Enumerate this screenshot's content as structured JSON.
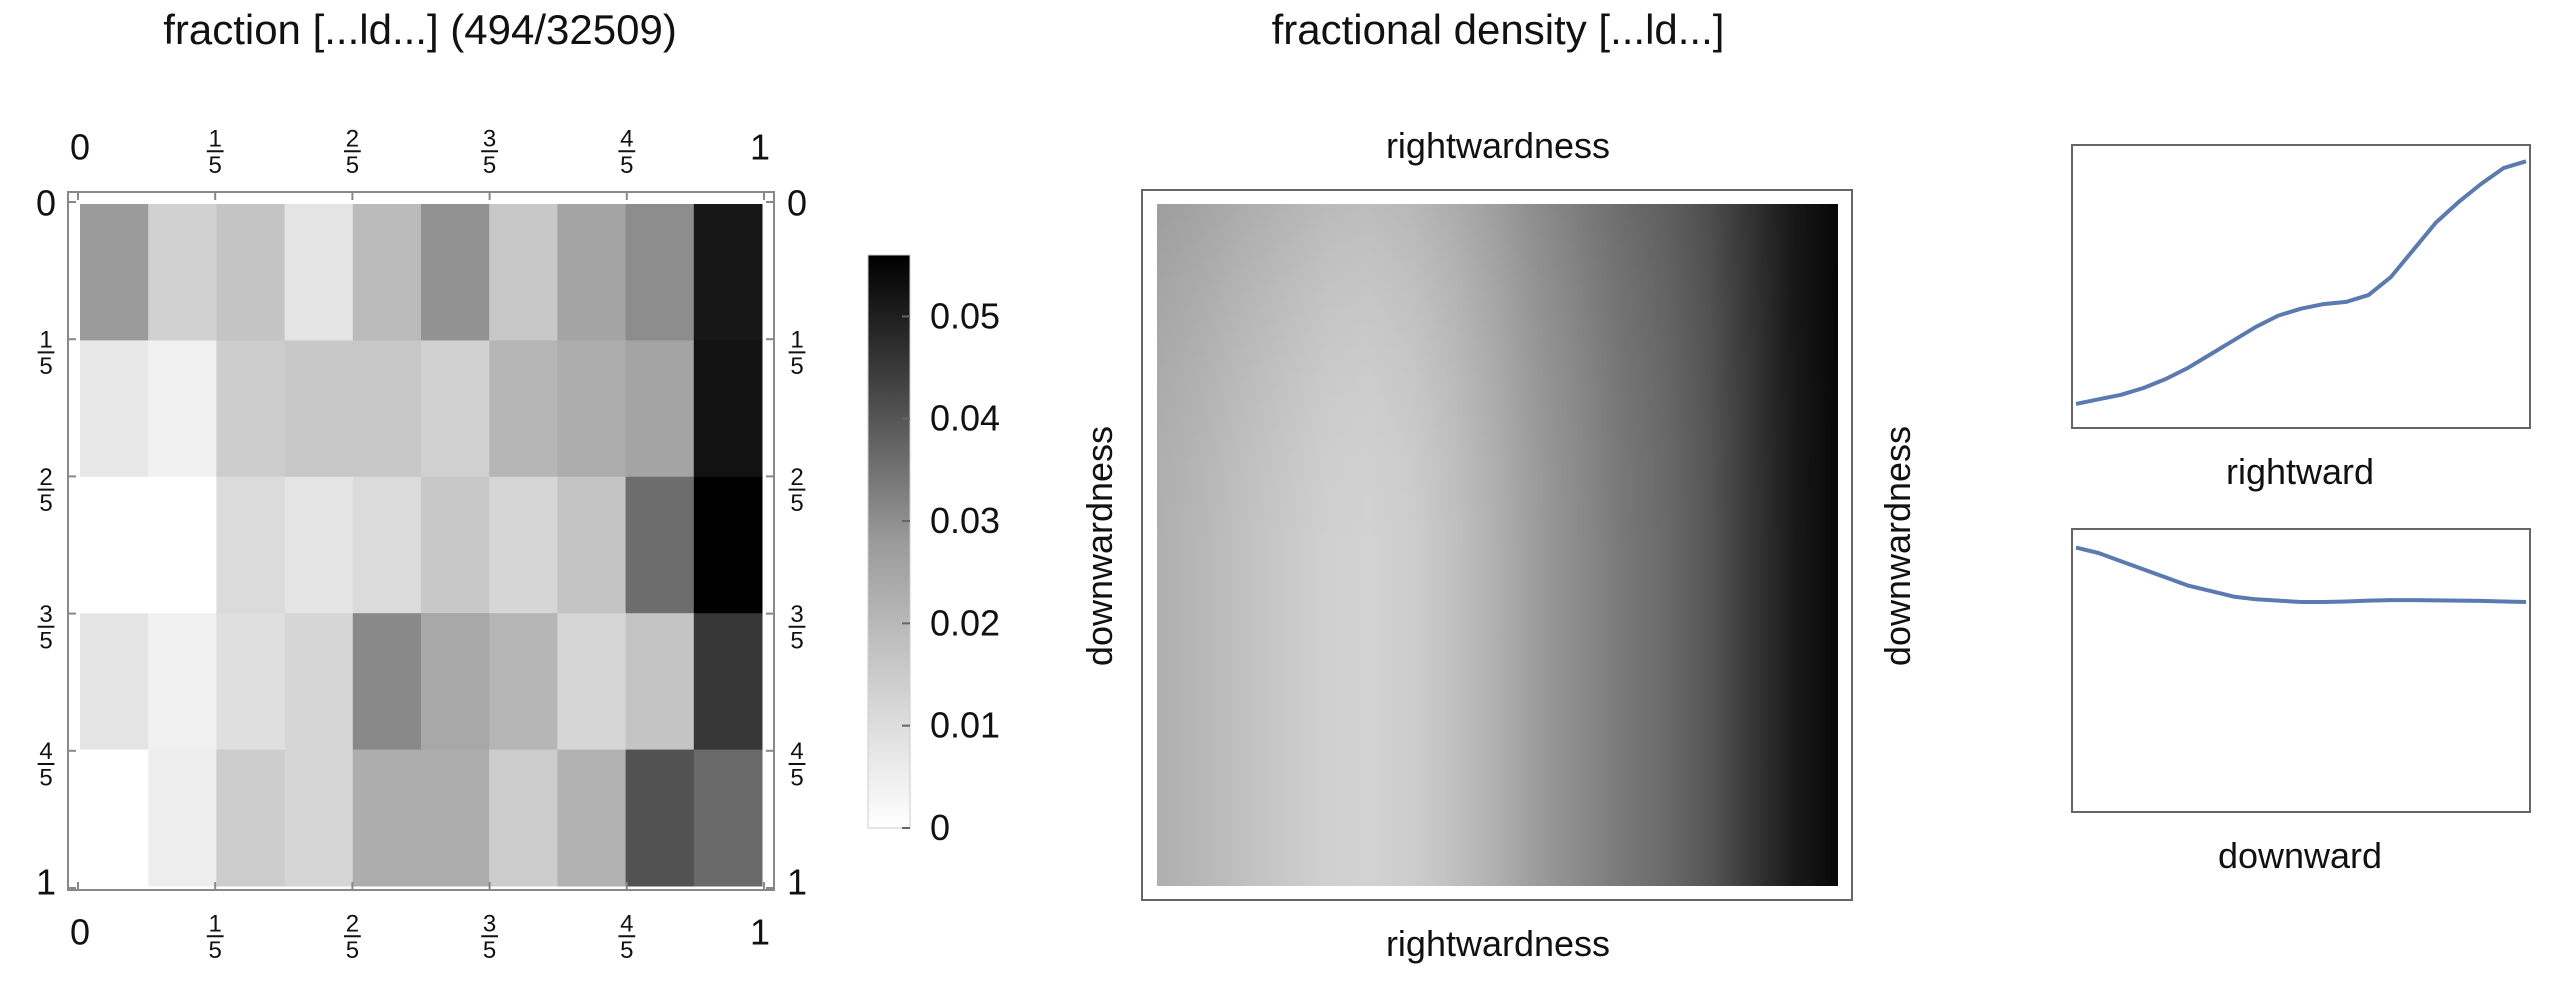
{
  "chart_data": [
    {
      "type": "heatmap",
      "title": "fraction [...ld...]  (494/32509)",
      "rows": 5,
      "cols": 10,
      "top_ticks": [
        "0",
        "1/5",
        "2/5",
        "3/5",
        "4/5",
        "1"
      ],
      "bottom_ticks": [
        "0",
        "1/5",
        "2/5",
        "3/5",
        "4/5",
        "1"
      ],
      "left_ticks": [
        "0",
        "1/5",
        "2/5",
        "3/5",
        "4/5",
        "1"
      ],
      "right_ticks": [
        "0",
        "1/5",
        "2/5",
        "3/5",
        "4/5",
        "1"
      ],
      "values": [
        [
          0.022,
          0.01,
          0.013,
          0.006,
          0.015,
          0.024,
          0.012,
          0.02,
          0.025,
          0.051
        ],
        [
          0.005,
          0.003,
          0.011,
          0.012,
          0.012,
          0.01,
          0.016,
          0.018,
          0.02,
          0.052
        ],
        [
          0.0,
          0.0,
          0.008,
          0.006,
          0.008,
          0.012,
          0.009,
          0.013,
          0.032,
          0.056
        ],
        [
          0.006,
          0.003,
          0.007,
          0.009,
          0.026,
          0.019,
          0.016,
          0.009,
          0.013,
          0.044
        ],
        [
          0.0,
          0.004,
          0.011,
          0.009,
          0.018,
          0.018,
          0.011,
          0.017,
          0.038,
          0.033
        ]
      ],
      "colorbar": {
        "range": [
          0,
          0.056
        ],
        "ticks": [
          "0",
          "0.01",
          "0.02",
          "0.03",
          "0.04",
          "0.05"
        ],
        "tick_values": [
          0,
          0.01,
          0.02,
          0.03,
          0.04,
          0.05
        ]
      }
    },
    {
      "type": "heatmap",
      "title": "fractional density [...ld...]",
      "xlabel_top": "rightwardness",
      "xlabel_bottom": "rightwardness",
      "ylabel_left": "downwardness",
      "ylabel_right": "downwardness",
      "column_profile": [
        0.3,
        0.27,
        0.23,
        0.2,
        0.17,
        0.16,
        0.18,
        0.23,
        0.3,
        0.38,
        0.45,
        0.52,
        0.58,
        0.66,
        0.78,
        0.9,
        0.97
      ],
      "row_profile": [
        0.12,
        0.08,
        0.05,
        0.03,
        0.02,
        0.02,
        0.02,
        0.02,
        0.02
      ]
    },
    {
      "type": "line",
      "xlabel": "rightward",
      "x": [
        0,
        0.05,
        0.1,
        0.15,
        0.2,
        0.25,
        0.3,
        0.35,
        0.4,
        0.45,
        0.5,
        0.55,
        0.6,
        0.65,
        0.7,
        0.75,
        0.8,
        0.85,
        0.9,
        0.95,
        1.0
      ],
      "y": [
        0.08,
        0.1,
        0.12,
        0.15,
        0.19,
        0.24,
        0.3,
        0.36,
        0.42,
        0.47,
        0.5,
        0.52,
        0.53,
        0.56,
        0.64,
        0.76,
        0.88,
        0.97,
        1.05,
        1.12,
        1.15
      ],
      "ylim": [
        0,
        1.2
      ],
      "color": "#5a7ab0"
    },
    {
      "type": "line",
      "xlabel": "downward",
      "x": [
        0,
        0.05,
        0.1,
        0.15,
        0.2,
        0.25,
        0.3,
        0.35,
        0.4,
        0.45,
        0.5,
        0.55,
        0.6,
        0.65,
        0.7,
        0.75,
        0.8,
        0.85,
        0.9,
        0.95,
        1.0
      ],
      "y": [
        0.95,
        0.93,
        0.9,
        0.87,
        0.84,
        0.81,
        0.79,
        0.77,
        0.76,
        0.755,
        0.75,
        0.75,
        0.752,
        0.755,
        0.757,
        0.757,
        0.756,
        0.755,
        0.754,
        0.752,
        0.75
      ],
      "ylim": [
        0,
        1.0
      ],
      "color": "#5a7ab0"
    }
  ]
}
